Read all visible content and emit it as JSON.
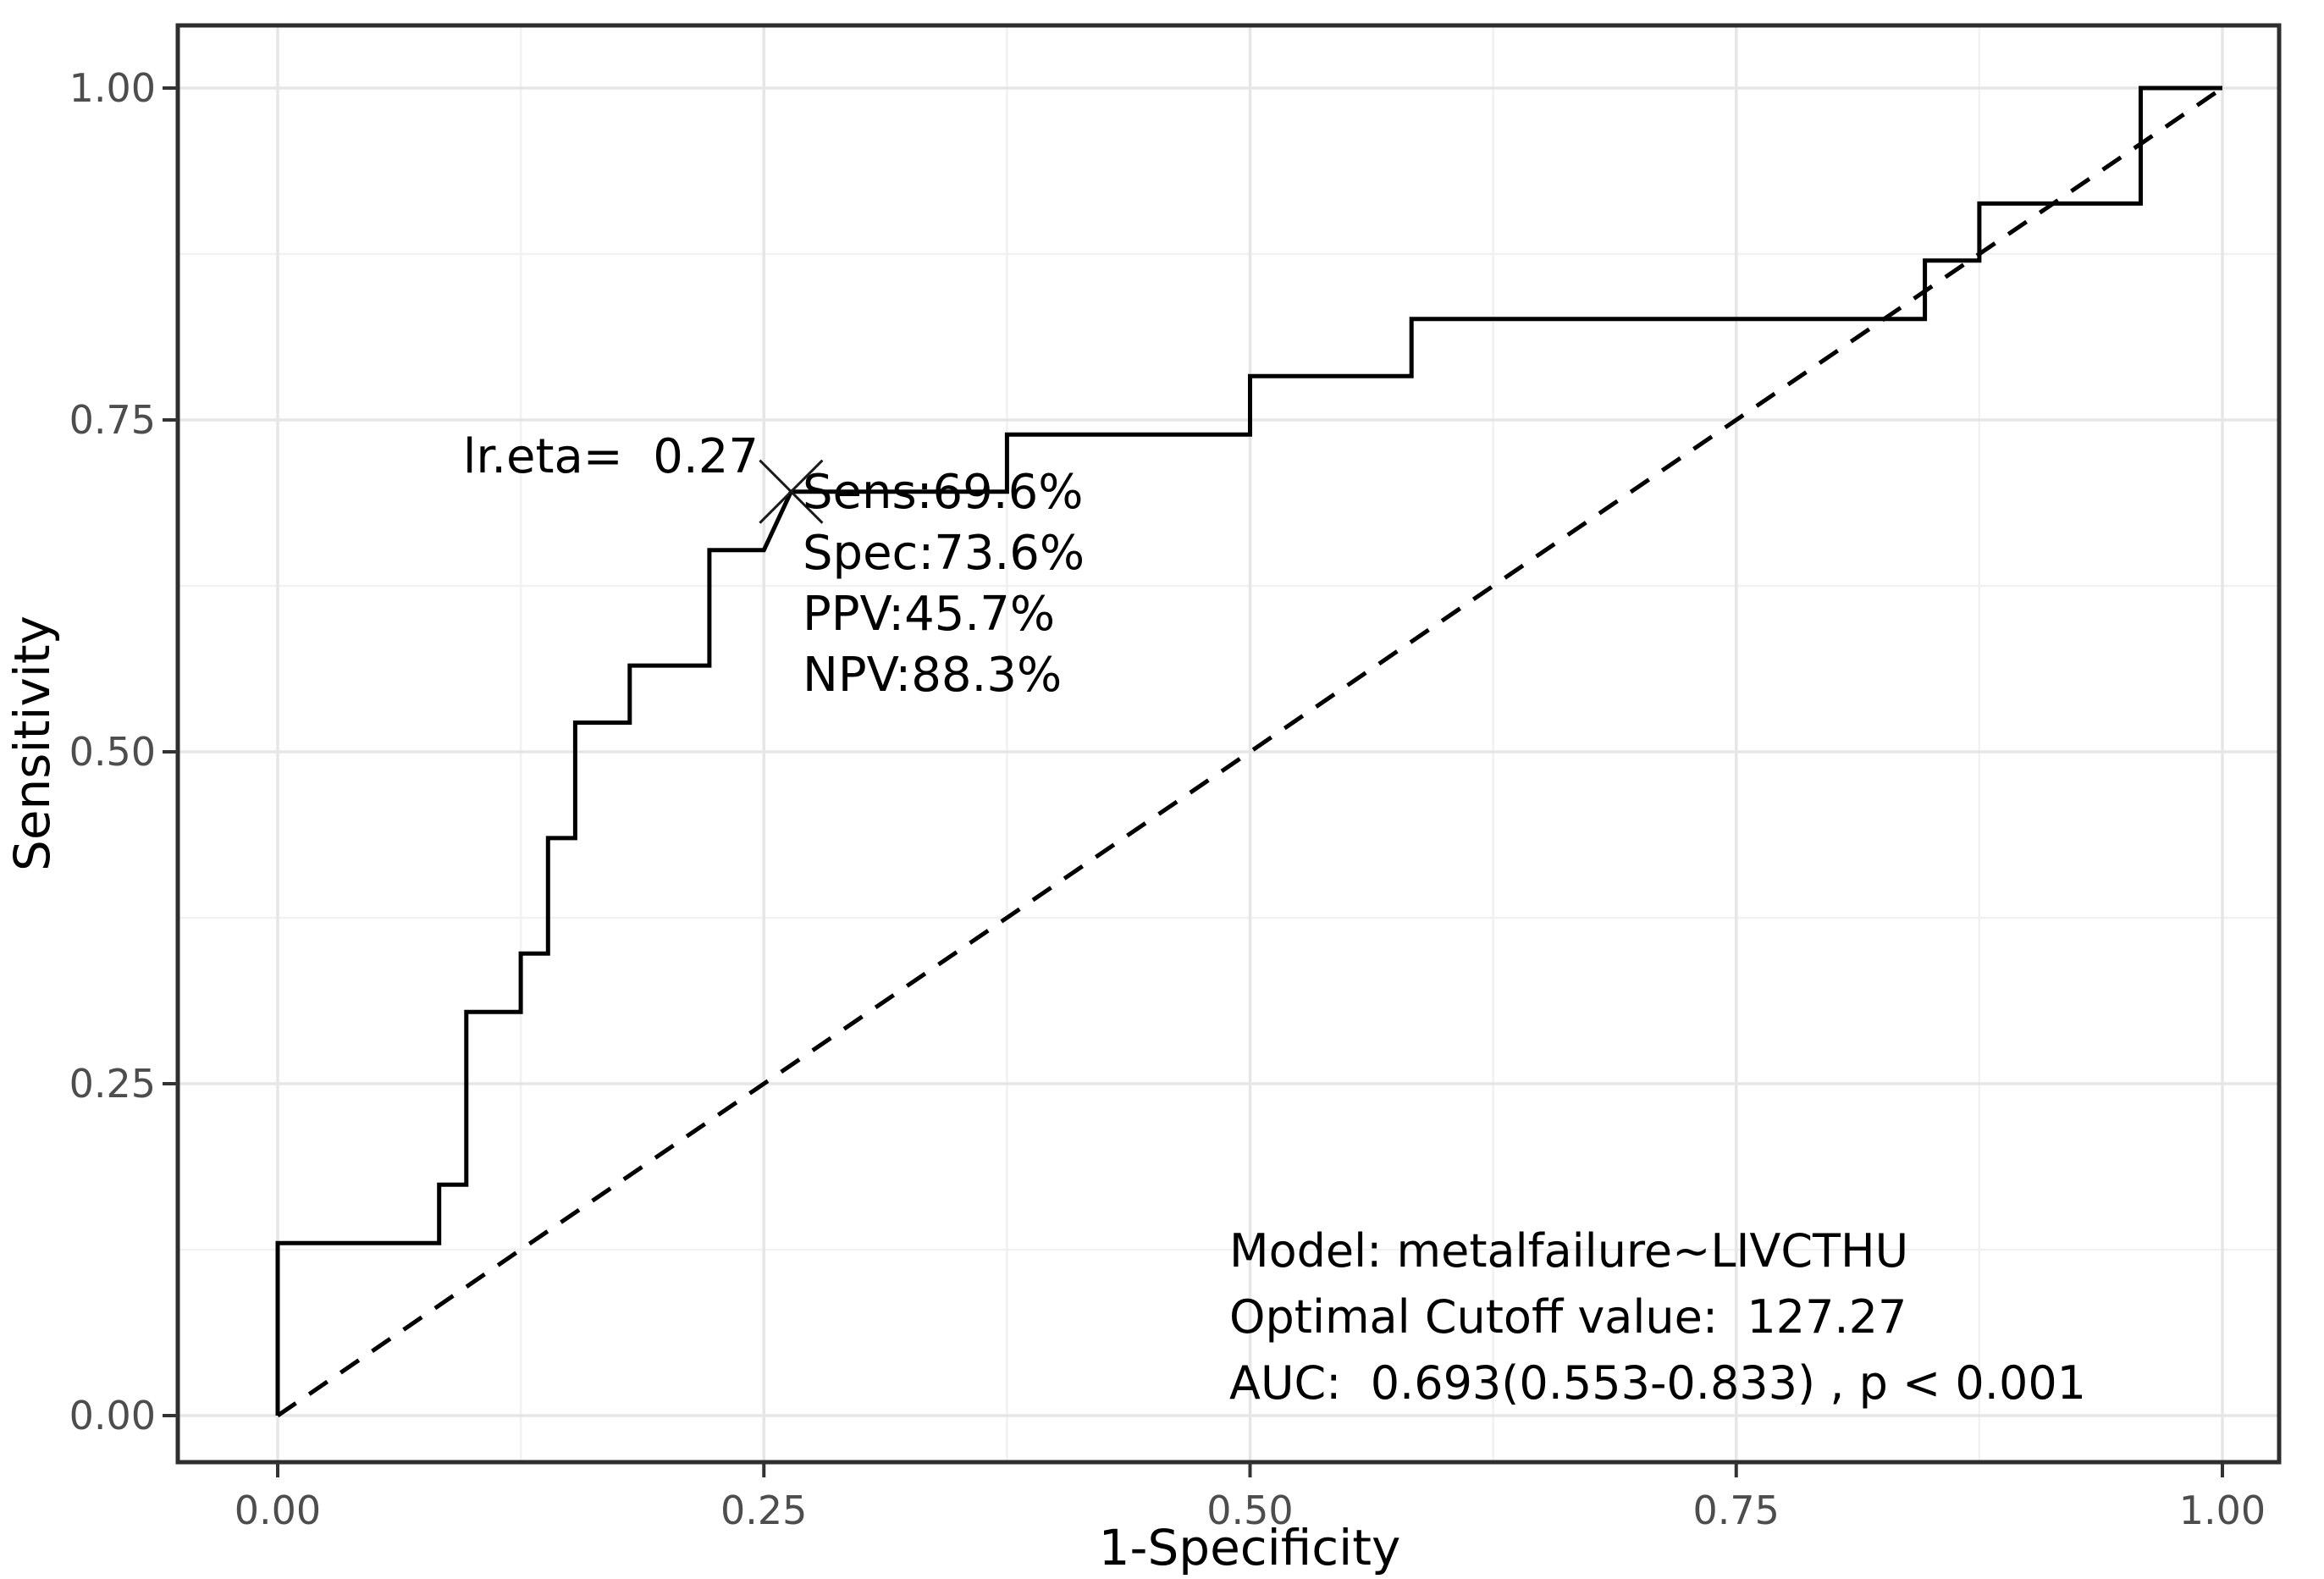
{
  "chart_data": {
    "type": "line",
    "title": "",
    "xlabel": "1-Specificity",
    "ylabel": "Sensitivity",
    "xlim": [
      0,
      1
    ],
    "ylim": [
      0,
      1
    ],
    "grid": true,
    "legend_position": "none",
    "x_ticks": {
      "values": [
        0,
        0.25,
        0.5,
        0.75,
        1.0
      ],
      "labels": [
        "0.00",
        "0.25",
        "0.50",
        "0.75",
        "1.00"
      ]
    },
    "y_ticks": {
      "values": [
        0,
        0.25,
        0.5,
        0.75,
        1.0
      ],
      "labels": [
        "0.00",
        "0.25",
        "0.50",
        "0.75",
        "1.00"
      ]
    },
    "minor_gridlines": [
      0.125,
      0.375,
      0.625,
      0.875
    ],
    "series": [
      {
        "name": "ROC curve",
        "style": "solid",
        "points": [
          [
            0.0,
            0.0
          ],
          [
            0.0,
            0.13
          ],
          [
            0.083,
            0.13
          ],
          [
            0.083,
            0.174
          ],
          [
            0.097,
            0.174
          ],
          [
            0.097,
            0.304
          ],
          [
            0.125,
            0.304
          ],
          [
            0.125,
            0.348
          ],
          [
            0.139,
            0.348
          ],
          [
            0.139,
            0.435
          ],
          [
            0.153,
            0.435
          ],
          [
            0.153,
            0.522
          ],
          [
            0.181,
            0.522
          ],
          [
            0.181,
            0.565
          ],
          [
            0.222,
            0.565
          ],
          [
            0.222,
            0.652
          ],
          [
            0.25,
            0.652
          ],
          [
            0.264,
            0.696
          ],
          [
            0.375,
            0.696
          ],
          [
            0.375,
            0.739
          ],
          [
            0.5,
            0.739
          ],
          [
            0.5,
            0.783
          ],
          [
            0.583,
            0.783
          ],
          [
            0.583,
            0.826
          ],
          [
            0.847,
            0.826
          ],
          [
            0.847,
            0.87
          ],
          [
            0.875,
            0.87
          ],
          [
            0.875,
            0.913
          ],
          [
            0.958,
            0.913
          ],
          [
            0.958,
            1.0
          ],
          [
            1.0,
            1.0
          ]
        ]
      },
      {
        "name": "Reference diagonal",
        "style": "dashed",
        "points": [
          [
            0,
            0
          ],
          [
            1,
            1
          ]
        ]
      }
    ],
    "optimal_point": {
      "x": 0.264,
      "y": 0.696,
      "marker": "x-cross",
      "cutoff_label": "lr.eta=  0.27",
      "sensitivity": "69.6%",
      "specificity": "73.6%",
      "ppv": "45.7%",
      "npv": "88.3%"
    }
  },
  "annotations": {
    "cutoff_label": "lr.eta=  0.27",
    "metric_lines": [
      "Sens:69.6%",
      "Spec:73.6%",
      "PPV:45.7%",
      "NPV:88.3%"
    ],
    "model_block": [
      "Model: metalfailure~LIVCTHU",
      "Optimal Cutoff value:  127.27",
      "AUC:  0.693(0.553-0.833) , p < 0.001"
    ]
  },
  "colors": {
    "background": "#FFFFFF",
    "curve": "#000000",
    "diagonal": "#000000",
    "grid_major": "#E6E6E6",
    "grid_minor": "#F1F1F1",
    "panel_border": "#2E2E2E",
    "tick_mark": "#333333",
    "tick_label": "#4D4D4D",
    "text": "#000000"
  }
}
